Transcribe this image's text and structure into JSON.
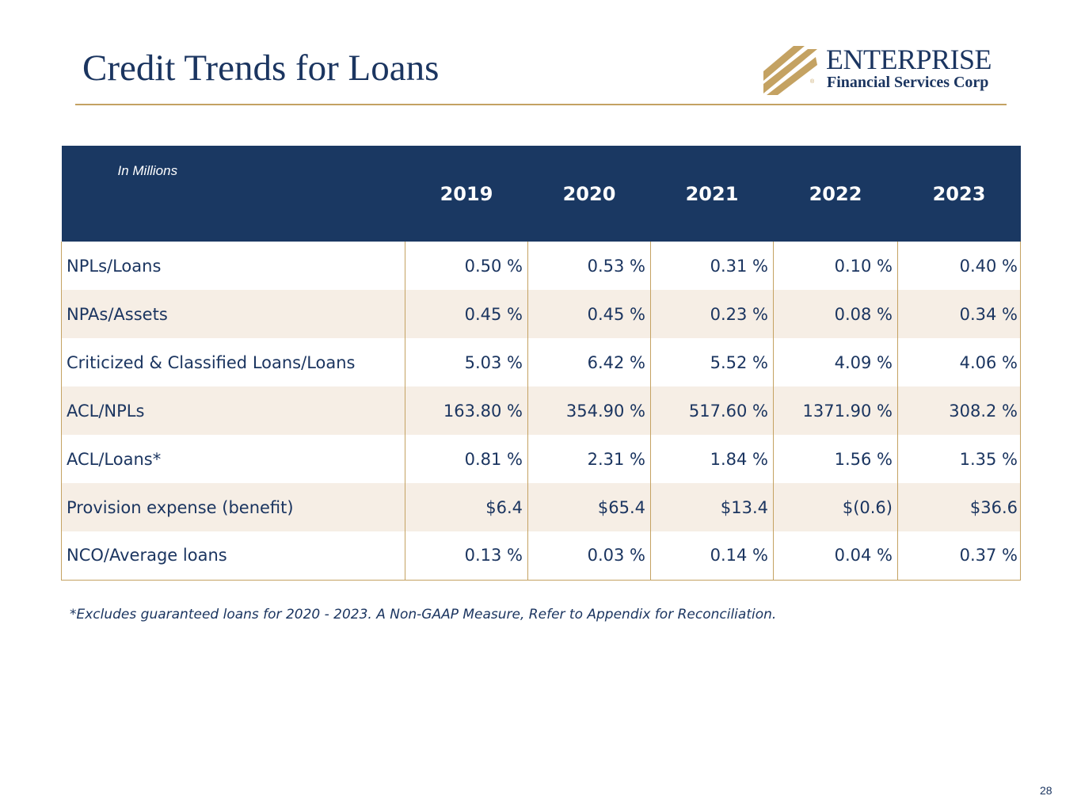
{
  "page": {
    "title": "Credit Trends for Loans",
    "page_number": "28"
  },
  "logo": {
    "name": "ENTERPRISE",
    "subtitle": "Financial Services Corp",
    "reg_mark": "®"
  },
  "table": {
    "caption": "In Millions",
    "years": [
      "2019",
      "2020",
      "2021",
      "2022",
      "2023"
    ],
    "rows": [
      {
        "label": "NPLs/Loans",
        "values": [
          "0.50 %",
          "0.53 %",
          "0.31 %",
          "0.10 %",
          "0.40 %"
        ]
      },
      {
        "label": "NPAs/Assets",
        "values": [
          "0.45 %",
          "0.45 %",
          "0.23 %",
          "0.08 %",
          "0.34 %"
        ]
      },
      {
        "label": "Criticized & Classified Loans/Loans",
        "values": [
          "5.03 %",
          "6.42 %",
          "5.52 %",
          "4.09 %",
          "4.06 %"
        ]
      },
      {
        "label": "ACL/NPLs",
        "values": [
          "163.80 %",
          "354.90 %",
          "517.60 %",
          "1371.90 %",
          "308.2 %"
        ]
      },
      {
        "label": "ACL/Loans*",
        "values": [
          "0.81 %",
          "2.31 %",
          "1.84 %",
          "1.56 %",
          "1.35 %"
        ]
      },
      {
        "label": "Provision expense (benefit)",
        "values": [
          "$6.4",
          "$65.4",
          "$13.4",
          "$(0.6)",
          "$36.6"
        ]
      },
      {
        "label": "NCO/Average loans",
        "values": [
          "0.13 %",
          "0.03 %",
          "0.14 %",
          "0.04 %",
          "0.37 %"
        ]
      }
    ]
  },
  "footnote": "*Excludes guaranteed loans for 2020 - 2023. A Non-GAAP Measure, Refer to Appendix for Reconciliation.",
  "colors": {
    "navy": "#1a3862",
    "gold": "#c4a262",
    "band": "#f6eee5"
  }
}
